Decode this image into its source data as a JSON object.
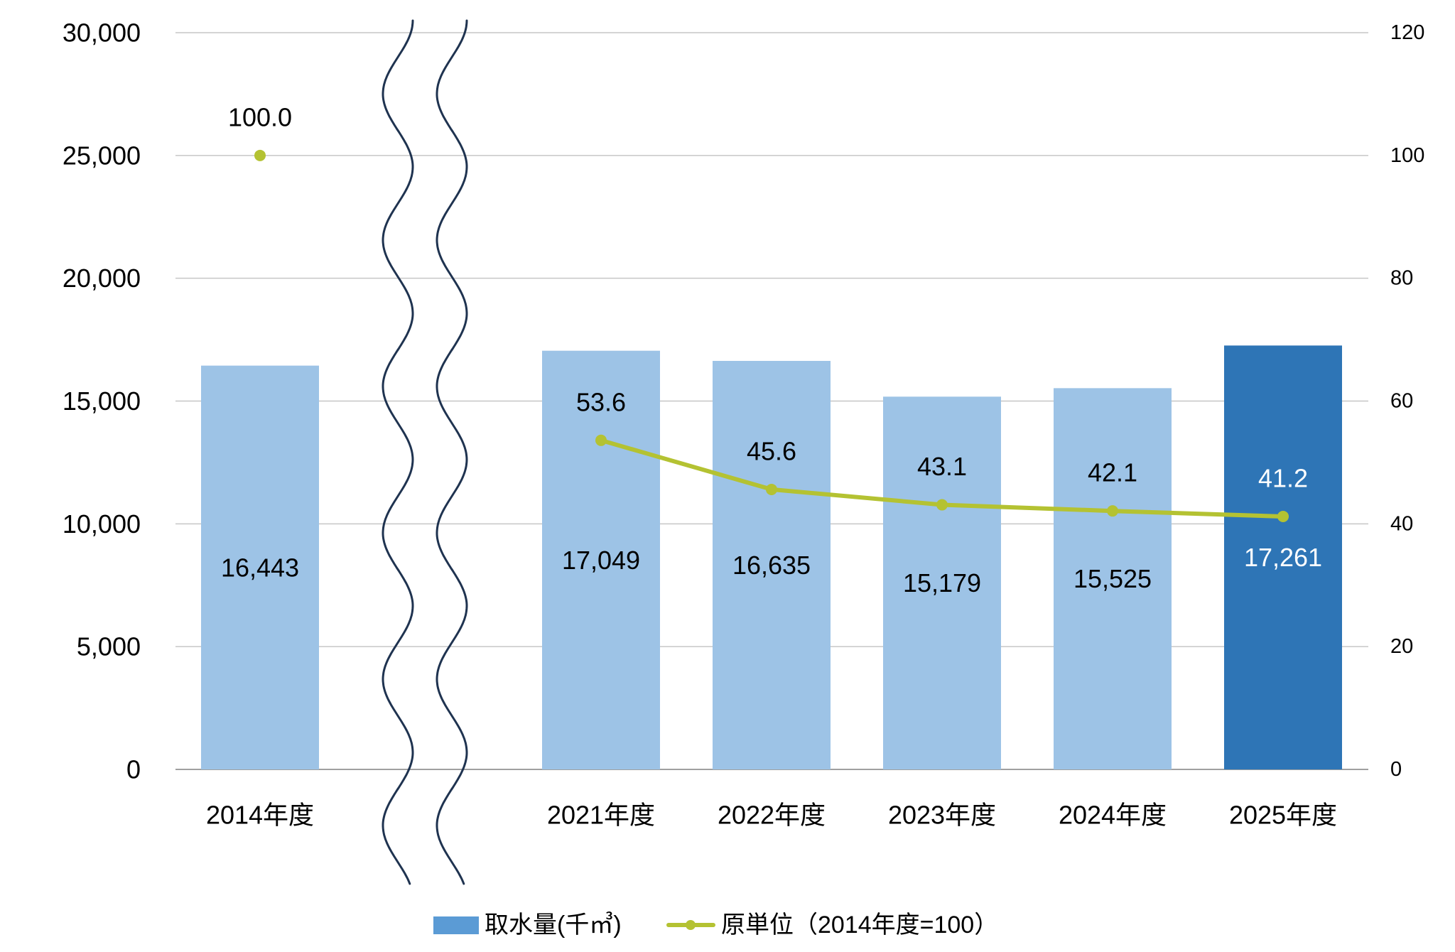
{
  "chart_data": {
    "type": "bar",
    "categories": [
      "2014年度",
      "2021年度",
      "2022年度",
      "2023年度",
      "2024年度",
      "2025年度"
    ],
    "break_after_index": 0,
    "series": [
      {
        "name": "取水量(千㎥)",
        "type": "bar",
        "y_axis": "left",
        "values": [
          16443,
          17049,
          16635,
          15179,
          15525,
          17261
        ],
        "labels": [
          "16,443",
          "17,049",
          "16,635",
          "15,179",
          "15,525",
          "17,261"
        ],
        "color": "#9DC3E6",
        "highlight_index": 5,
        "highlight_color": "#2E75B6",
        "legend_color": "#5B9BD5"
      },
      {
        "name": "原単位（2014年度=100）",
        "type": "line",
        "y_axis": "right",
        "values": [
          100.0,
          53.6,
          45.6,
          43.1,
          42.1,
          41.2
        ],
        "labels": [
          "100.0",
          "53.6",
          "45.6",
          "43.1",
          "42.1",
          "41.2"
        ],
        "color": "#B4C232"
      }
    ],
    "y_left": {
      "range": [
        0,
        30000
      ],
      "ticks": [
        0,
        5000,
        10000,
        15000,
        20000,
        25000,
        30000
      ],
      "tick_labels": [
        "0",
        "5,000",
        "10,000",
        "15,000",
        "20,000",
        "25,000",
        "30,000"
      ]
    },
    "y_right": {
      "range": [
        0,
        120
      ],
      "ticks": [
        0,
        20,
        40,
        60,
        80,
        100,
        120
      ],
      "tick_labels": [
        "0",
        "20",
        "40",
        "60",
        "80",
        "100",
        "120"
      ]
    },
    "grid": true,
    "legend_position": "bottom",
    "grid_color": "#C6C6C6",
    "axis_color": "#A0A0A0",
    "label_color": "#000000",
    "highlight_label_color": "#FFFFFF",
    "break_line_color": "#1F3350"
  }
}
